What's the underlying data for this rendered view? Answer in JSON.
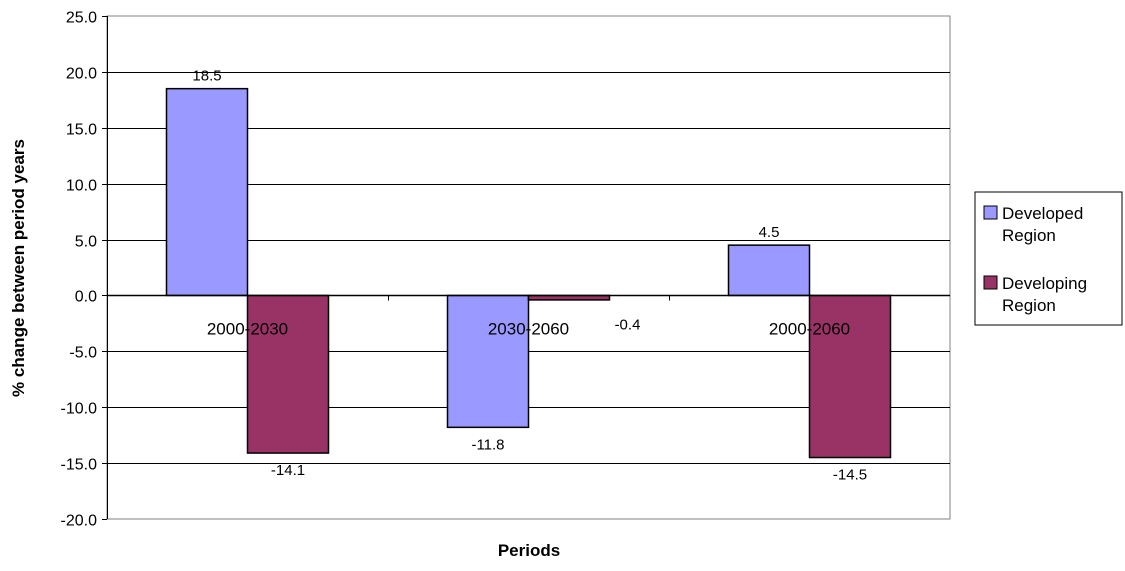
{
  "chart_data": {
    "type": "bar",
    "title": "",
    "xlabel": "Periods",
    "ylabel": "% change between period years",
    "categories": [
      "2000-2030",
      "2030-2060",
      "2000-2060"
    ],
    "series": [
      {
        "name": "Developed Region",
        "name_lines": [
          "Developed",
          "Region"
        ],
        "values": [
          18.5,
          -11.8,
          4.5
        ],
        "color": "#9999ff"
      },
      {
        "name": "Developing Region",
        "name_lines": [
          "Developing",
          "Region"
        ],
        "values": [
          -14.1,
          -0.4,
          -14.5
        ],
        "color": "#993366"
      }
    ],
    "data_labels": [
      [
        "18.5",
        "-11.8",
        "4.5"
      ],
      [
        "-14.1",
        "-0.4",
        "-14.5"
      ]
    ],
    "ylim": [
      -20,
      25
    ],
    "yticks": [
      25,
      20,
      15,
      10,
      5,
      0,
      -5,
      -10,
      -15,
      -20
    ],
    "ytick_labels": [
      "25.0",
      "20.0",
      "15.0",
      "10.0",
      "5.0",
      "0.0",
      "-5.0",
      "-10.0",
      "-15.0",
      "-20.0"
    ],
    "grid": true,
    "legend_position": "right"
  }
}
